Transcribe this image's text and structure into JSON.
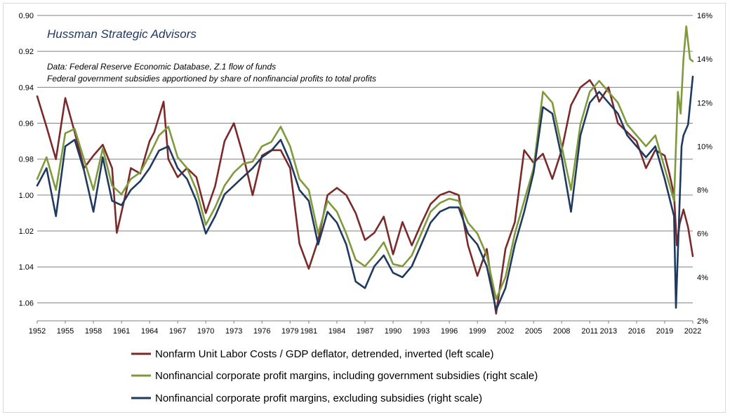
{
  "chart_data": {
    "type": "line",
    "title": "",
    "annotations": {
      "brand": "Hussman Strategic Advisors",
      "note_line1": "Data: Federal Reserve Economic Database, Z.1 flow of funds",
      "note_line2": "Federal government subsidies apportioned by share of nonfinancial profits to total profits"
    },
    "x_axis": {
      "range": [
        1952,
        2022
      ],
      "tick_labels": [
        "1952",
        "1955",
        "1958",
        "1961",
        "1964",
        "1967",
        "1970",
        "1973",
        "1976",
        "1979",
        "1981",
        "1984",
        "1987",
        "1990",
        "1993",
        "1996",
        "1999",
        "2002",
        "2005",
        "2008",
        "2011",
        "2013",
        "2016",
        "2019",
        "2022"
      ]
    },
    "left_axis": {
      "inverted": true,
      "range": [
        0.9,
        1.07
      ],
      "tick_labels": [
        "0.90",
        "0.92",
        "0.94",
        "0.96",
        "0.98",
        "1.00",
        "1.02",
        "1.04",
        "1.06"
      ]
    },
    "right_axis": {
      "range": [
        2,
        16
      ],
      "tick_labels": [
        "16%",
        "14%",
        "12%",
        "10%",
        "8%",
        "6%",
        "4%",
        "2%"
      ]
    },
    "grid": "horizontal",
    "legend_position": "bottom",
    "colors": {
      "ulc": "#7b2a2a",
      "green": "#7f9a3c",
      "blue": "#1f3a5f",
      "grid": "#808080"
    },
    "series": [
      {
        "name": "Nonfarm Unit Labor Costs / GDP deflator, detrended, inverted (left scale)",
        "axis": "left",
        "points": [
          [
            1952,
            0.945
          ],
          [
            1953,
            0.962
          ],
          [
            1954,
            0.98
          ],
          [
            1955,
            0.946
          ],
          [
            1956,
            0.965
          ],
          [
            1957,
            0.985
          ],
          [
            1958,
            0.978
          ],
          [
            1959,
            0.972
          ],
          [
            1960,
            0.985
          ],
          [
            1960.5,
            1.021
          ],
          [
            1961.5,
            0.998
          ],
          [
            1962,
            0.985
          ],
          [
            1963,
            0.988
          ],
          [
            1964,
            0.97
          ],
          [
            1964.5,
            0.965
          ],
          [
            1965.5,
            0.948
          ],
          [
            1966,
            0.98
          ],
          [
            1967,
            0.99
          ],
          [
            1968,
            0.985
          ],
          [
            1969,
            0.99
          ],
          [
            1970,
            1.01
          ],
          [
            1971,
            0.995
          ],
          [
            1972,
            0.97
          ],
          [
            1973,
            0.96
          ],
          [
            1974,
            0.978
          ],
          [
            1975,
            1.0
          ],
          [
            1976,
            0.978
          ],
          [
            1977,
            0.975
          ],
          [
            1978,
            0.975
          ],
          [
            1979,
            0.985
          ],
          [
            1980,
            1.027
          ],
          [
            1981,
            1.041
          ],
          [
            1982,
            1.025
          ],
          [
            1983,
            1.0
          ],
          [
            1984,
            0.996
          ],
          [
            1985,
            1.0
          ],
          [
            1986,
            1.01
          ],
          [
            1987,
            1.025
          ],
          [
            1988,
            1.021
          ],
          [
            1989,
            1.012
          ],
          [
            1990,
            1.033
          ],
          [
            1991,
            1.015
          ],
          [
            1992,
            1.028
          ],
          [
            1993,
            1.016
          ],
          [
            1994,
            1.005
          ],
          [
            1995,
            1.0
          ],
          [
            1996,
            0.998
          ],
          [
            1997,
            1.0
          ],
          [
            1998,
            1.028
          ],
          [
            1999,
            1.045
          ],
          [
            2000,
            1.03
          ],
          [
            2001,
            1.066
          ],
          [
            2002,
            1.03
          ],
          [
            2003,
            1.015
          ],
          [
            2004,
            0.975
          ],
          [
            2005,
            0.982
          ],
          [
            2006,
            0.977
          ],
          [
            2007,
            0.991
          ],
          [
            2008,
            0.975
          ],
          [
            2009,
            0.95
          ],
          [
            2010,
            0.94
          ],
          [
            2011,
            0.936
          ],
          [
            2011.5,
            0.94
          ],
          [
            2012,
            0.948
          ],
          [
            2013,
            0.94
          ],
          [
            2014,
            0.96
          ],
          [
            2015,
            0.965
          ],
          [
            2016,
            0.97
          ],
          [
            2017,
            0.985
          ],
          [
            2018,
            0.975
          ],
          [
            2019,
            0.978
          ],
          [
            2019.5,
            0.988
          ],
          [
            2020,
            1.0
          ],
          [
            2020.3,
            1.028
          ],
          [
            2020.6,
            1.016
          ],
          [
            2021,
            1.008
          ],
          [
            2021.5,
            1.018
          ],
          [
            2022,
            1.034
          ]
        ]
      },
      {
        "name": "Nonfinancial corporate profit margins, including government subsidies (right scale)",
        "axis": "right",
        "points": [
          [
            1952,
            8.5
          ],
          [
            1953,
            9.5
          ],
          [
            1954,
            8.0
          ],
          [
            1955,
            10.6
          ],
          [
            1956,
            10.8
          ],
          [
            1957,
            9.4
          ],
          [
            1958,
            8.0
          ],
          [
            1959,
            9.9
          ],
          [
            1960,
            8.2
          ],
          [
            1961,
            7.8
          ],
          [
            1962,
            8.5
          ],
          [
            1963,
            8.8
          ],
          [
            1964,
            9.6
          ],
          [
            1965,
            10.5
          ],
          [
            1966,
            10.9
          ],
          [
            1967,
            9.5
          ],
          [
            1968,
            9.0
          ],
          [
            1969,
            8.0
          ],
          [
            1970,
            6.4
          ],
          [
            1971,
            7.2
          ],
          [
            1972,
            8.2
          ],
          [
            1973,
            8.8
          ],
          [
            1974,
            9.2
          ],
          [
            1975,
            9.3
          ],
          [
            1976,
            10.0
          ],
          [
            1977,
            10.2
          ],
          [
            1978,
            10.9
          ],
          [
            1979,
            10.0
          ],
          [
            1980,
            8.5
          ],
          [
            1981,
            8.0
          ],
          [
            1982,
            6.0
          ],
          [
            1983,
            7.5
          ],
          [
            1984,
            7.0
          ],
          [
            1985,
            6.0
          ],
          [
            1986,
            4.8
          ],
          [
            1987,
            4.5
          ],
          [
            1988,
            5.0
          ],
          [
            1989,
            5.6
          ],
          [
            1990,
            4.6
          ],
          [
            1991,
            4.5
          ],
          [
            1992,
            5.0
          ],
          [
            1993,
            6.0
          ],
          [
            1994,
            7.0
          ],
          [
            1995,
            7.4
          ],
          [
            1996,
            7.6
          ],
          [
            1997,
            7.5
          ],
          [
            1998,
            6.5
          ],
          [
            1999,
            6.0
          ],
          [
            2000,
            5.0
          ],
          [
            2001,
            3.0
          ],
          [
            2002,
            4.0
          ],
          [
            2003,
            6.0
          ],
          [
            2004,
            7.5
          ],
          [
            2005,
            9.0
          ],
          [
            2006,
            12.5
          ],
          [
            2007,
            12.0
          ],
          [
            2008,
            10.0
          ],
          [
            2009,
            8.0
          ],
          [
            2010,
            11.0
          ],
          [
            2011,
            12.5
          ],
          [
            2012,
            13.0
          ],
          [
            2013,
            12.5
          ],
          [
            2014,
            12.0
          ],
          [
            2015,
            11.0
          ],
          [
            2016,
            10.5
          ],
          [
            2017,
            10.0
          ],
          [
            2018,
            10.5
          ],
          [
            2019,
            9.0
          ],
          [
            2020,
            7.5
          ],
          [
            2020.4,
            12.5
          ],
          [
            2020.7,
            11.5
          ],
          [
            2021,
            14.0
          ],
          [
            2021.3,
            15.5
          ],
          [
            2021.7,
            14.0
          ],
          [
            2022,
            13.9
          ]
        ]
      },
      {
        "name": "Nonfinancial corporate profit margins, excluding subsidies (right scale)",
        "axis": "right",
        "points": [
          [
            1952,
            8.2
          ],
          [
            1953,
            9.0
          ],
          [
            1954,
            6.8
          ],
          [
            1955,
            10.0
          ],
          [
            1956,
            10.3
          ],
          [
            1957,
            8.9
          ],
          [
            1958,
            7.0
          ],
          [
            1959,
            9.5
          ],
          [
            1960,
            7.5
          ],
          [
            1961,
            7.3
          ],
          [
            1962,
            8.0
          ],
          [
            1963,
            8.4
          ],
          [
            1964,
            9.0
          ],
          [
            1965,
            9.8
          ],
          [
            1966,
            10.0
          ],
          [
            1967,
            9.0
          ],
          [
            1968,
            8.5
          ],
          [
            1969,
            7.5
          ],
          [
            1970,
            6.0
          ],
          [
            1971,
            6.8
          ],
          [
            1972,
            7.8
          ],
          [
            1973,
            8.2
          ],
          [
            1974,
            8.6
          ],
          [
            1975,
            9.0
          ],
          [
            1976,
            9.5
          ],
          [
            1977,
            9.8
          ],
          [
            1978,
            10.3
          ],
          [
            1979,
            9.3
          ],
          [
            1980,
            8.0
          ],
          [
            1981,
            7.5
          ],
          [
            1982,
            5.5
          ],
          [
            1983,
            7.0
          ],
          [
            1984,
            6.5
          ],
          [
            1985,
            5.5
          ],
          [
            1986,
            3.8
          ],
          [
            1987,
            3.5
          ],
          [
            1988,
            4.5
          ],
          [
            1989,
            5.0
          ],
          [
            1990,
            4.2
          ],
          [
            1991,
            4.0
          ],
          [
            1992,
            4.5
          ],
          [
            1993,
            5.5
          ],
          [
            1994,
            6.5
          ],
          [
            1995,
            7.0
          ],
          [
            1996,
            7.2
          ],
          [
            1997,
            7.2
          ],
          [
            1998,
            6.0
          ],
          [
            1999,
            5.5
          ],
          [
            2000,
            4.5
          ],
          [
            2001,
            2.5
          ],
          [
            2002,
            3.5
          ],
          [
            2003,
            5.5
          ],
          [
            2004,
            7.0
          ],
          [
            2005,
            8.8
          ],
          [
            2006,
            11.8
          ],
          [
            2007,
            11.5
          ],
          [
            2008,
            9.5
          ],
          [
            2009,
            7.0
          ],
          [
            2010,
            10.5
          ],
          [
            2011,
            12.0
          ],
          [
            2012,
            12.5
          ],
          [
            2013,
            12.0
          ],
          [
            2014,
            11.5
          ],
          [
            2015,
            10.5
          ],
          [
            2016,
            10.0
          ],
          [
            2017,
            9.5
          ],
          [
            2018,
            10.0
          ],
          [
            2019,
            8.5
          ],
          [
            2020,
            6.8
          ],
          [
            2020.2,
            2.6
          ],
          [
            2020.8,
            10.0
          ],
          [
            2021,
            10.5
          ],
          [
            2021.5,
            11.0
          ],
          [
            2022,
            13.2
          ]
        ]
      }
    ]
  }
}
